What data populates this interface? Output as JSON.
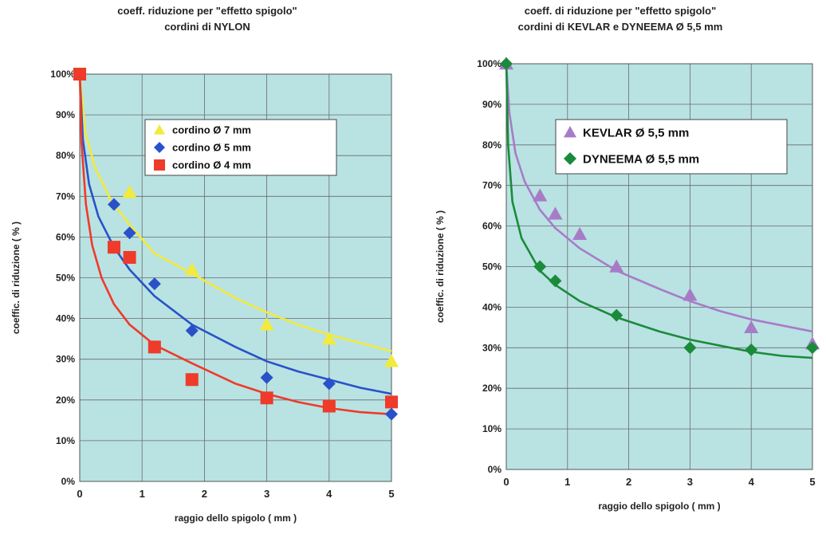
{
  "chart_data": [
    {
      "type": "scatter",
      "title": "coeff. riduzione per \"effetto spigolo\"",
      "subtitle": "cordini di NYLON",
      "xlabel": "raggio dello spigolo  ( mm )",
      "ylabel": "coeffic. di riduzione  ( % )",
      "xlim": [
        0,
        5
      ],
      "ylim": [
        0,
        100
      ],
      "xticks": [
        "0",
        "1",
        "2",
        "3",
        "4",
        "5"
      ],
      "yticks": [
        "0%",
        "10%",
        "20%",
        "30%",
        "40%",
        "50%",
        "60%",
        "70%",
        "80%",
        "90%",
        "100%"
      ],
      "grid": true,
      "legend_position": "top-right",
      "series": [
        {
          "name": "cordino   Ø  7 mm",
          "marker": "triangle",
          "color": "#f2ea3c",
          "x": [
            0,
            0.8,
            1.8,
            3,
            4,
            5
          ],
          "y": [
            100,
            71,
            52,
            38.5,
            35,
            29.5
          ],
          "trend": [
            [
              0,
              100
            ],
            [
              0.1,
              85
            ],
            [
              0.25,
              77
            ],
            [
              0.5,
              69
            ],
            [
              0.8,
              63
            ],
            [
              1.2,
              56
            ],
            [
              1.8,
              51
            ],
            [
              2.5,
              45
            ],
            [
              3,
              41.5
            ],
            [
              3.5,
              38.5
            ],
            [
              4,
              36
            ],
            [
              4.5,
              34
            ],
            [
              5,
              32
            ]
          ]
        },
        {
          "name": "cordino   Ø  5 mm",
          "marker": "diamond",
          "color": "#2952c8",
          "x": [
            0,
            0.55,
            0.8,
            1.2,
            1.8,
            3,
            4,
            5
          ],
          "y": [
            100,
            68,
            61,
            48.5,
            37,
            25.5,
            24,
            16.5
          ],
          "trend": [
            [
              0,
              100
            ],
            [
              0.05,
              84
            ],
            [
              0.15,
              73
            ],
            [
              0.3,
              65
            ],
            [
              0.55,
              57.5
            ],
            [
              0.8,
              52
            ],
            [
              1.2,
              45.5
            ],
            [
              1.8,
              38.5
            ],
            [
              2.5,
              33
            ],
            [
              3,
              29.5
            ],
            [
              3.5,
              27
            ],
            [
              4,
              25
            ],
            [
              4.5,
              23
            ],
            [
              5,
              21.5
            ]
          ]
        },
        {
          "name": "cordino   Ø  4 mm",
          "marker": "square",
          "color": "#ee3b2a",
          "x": [
            0,
            0.55,
            0.8,
            1.2,
            1.8,
            3,
            4,
            5
          ],
          "y": [
            100,
            57.5,
            55,
            33,
            25,
            20.5,
            18.5,
            19.5
          ],
          "trend": [
            [
              0,
              100
            ],
            [
              0.03,
              83
            ],
            [
              0.1,
              68
            ],
            [
              0.2,
              58
            ],
            [
              0.35,
              50
            ],
            [
              0.55,
              43.5
            ],
            [
              0.8,
              38.5
            ],
            [
              1.2,
              33.5
            ],
            [
              1.8,
              29
            ],
            [
              2.5,
              24
            ],
            [
              3,
              21.5
            ],
            [
              3.5,
              19.5
            ],
            [
              4,
              18
            ],
            [
              4.5,
              17
            ],
            [
              5,
              16.5
            ]
          ]
        }
      ]
    },
    {
      "type": "scatter",
      "title": "coeff. di riduzione per \"effetto spigolo\"",
      "subtitle": "cordini di KEVLAR e DYNEEMA  Ø  5,5 mm",
      "xlabel": "raggio dello spigolo  ( mm )",
      "ylabel": "coeffic. di riduzione  ( % )",
      "xlim": [
        0,
        5
      ],
      "ylim": [
        0,
        100
      ],
      "xticks": [
        "0",
        "1",
        "2",
        "3",
        "4",
        "5"
      ],
      "yticks": [
        "0%",
        "10%",
        "20%",
        "30%",
        "40%",
        "50%",
        "60%",
        "70%",
        "80%",
        "90%",
        "100%"
      ],
      "grid": true,
      "legend_position": "top-right",
      "series": [
        {
          "name": "KEVLAR   Ø   5,5 mm",
          "marker": "triangle",
          "color": "#a77cc7",
          "x": [
            0,
            0.55,
            0.8,
            1.2,
            1.8,
            3,
            4,
            5
          ],
          "y": [
            100,
            67.5,
            63,
            58,
            50,
            43,
            35,
            31
          ],
          "trend": [
            [
              0,
              100
            ],
            [
              0.05,
              88
            ],
            [
              0.15,
              78
            ],
            [
              0.3,
              71
            ],
            [
              0.55,
              64
            ],
            [
              0.8,
              59.5
            ],
            [
              1.2,
              54.5
            ],
            [
              1.8,
              49
            ],
            [
              2.5,
              44.5
            ],
            [
              3,
              41.5
            ],
            [
              3.5,
              39
            ],
            [
              4,
              37
            ],
            [
              4.5,
              35.5
            ],
            [
              5,
              34
            ]
          ]
        },
        {
          "name": "DYNEEMA   Ø   5,5 mm",
          "marker": "diamond",
          "color": "#1a8b3a",
          "x": [
            0,
            0.55,
            0.8,
            1.8,
            3,
            4,
            5
          ],
          "y": [
            100,
            50,
            46.5,
            38,
            30,
            29.5,
            30
          ],
          "trend": [
            [
              0,
              100
            ],
            [
              0.03,
              80
            ],
            [
              0.1,
              66
            ],
            [
              0.25,
              57
            ],
            [
              0.55,
              49
            ],
            [
              0.8,
              45.5
            ],
            [
              1.2,
              41.5
            ],
            [
              1.8,
              37.5
            ],
            [
              2.5,
              34
            ],
            [
              3,
              32
            ],
            [
              3.5,
              30.5
            ],
            [
              4,
              29
            ],
            [
              4.5,
              28
            ],
            [
              5,
              27.5
            ]
          ]
        }
      ]
    }
  ]
}
